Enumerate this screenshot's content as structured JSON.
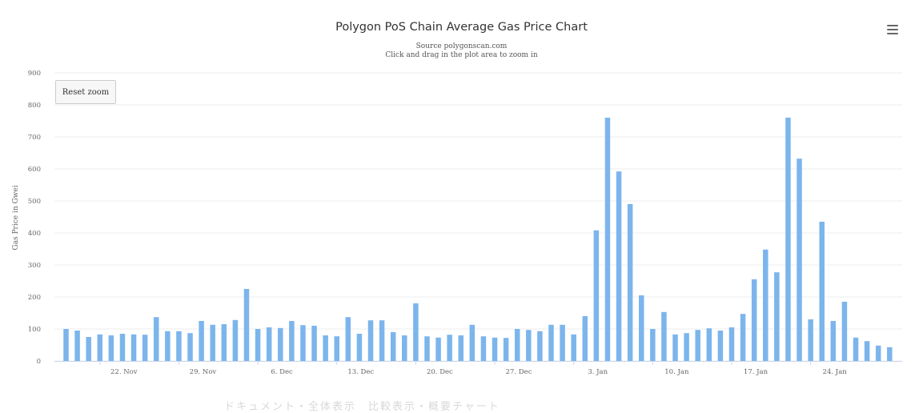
{
  "menu": {
    "icon": "hamburger-menu-icon"
  },
  "reset_zoom_label": "Reset zoom",
  "colors": {
    "bar": "#7cb5ec",
    "grid": "#eeeeee",
    "axis_text": "#666666"
  },
  "chart_data": {
    "type": "bar",
    "title": "Polygon PoS Chain Average Gas Price Chart",
    "subtitle": [
      "Source  polygonscan.com",
      "Click and drag in the plot area to zoom in"
    ],
    "xlabel": "",
    "ylabel": "Gas Price in Gwei",
    "ylim": [
      0,
      900
    ],
    "yticks": [
      0,
      100,
      200,
      300,
      400,
      500,
      600,
      700,
      800,
      900
    ],
    "grid": true,
    "legend": "none",
    "x_ticks": [
      "22. Nov",
      "29. Nov",
      "6. Dec",
      "13. Dec",
      "20. Dec",
      "27. Dec",
      "3. Jan",
      "10. Jan",
      "17. Jan",
      "24. Jan"
    ],
    "values": [
      100,
      95,
      75,
      83,
      80,
      85,
      83,
      82,
      137,
      93,
      93,
      87,
      125,
      113,
      115,
      128,
      225,
      100,
      105,
      103,
      125,
      112,
      110,
      80,
      77,
      137,
      85,
      127,
      127,
      90,
      80,
      180,
      77,
      73,
      82,
      80,
      113,
      77,
      73,
      72,
      100,
      97,
      93,
      113,
      113,
      83,
      140,
      408,
      760,
      592,
      490,
      205,
      100,
      153,
      83,
      87,
      97,
      102,
      95,
      105,
      147,
      255,
      348,
      277,
      760,
      632,
      130,
      435,
      125,
      185,
      73,
      62,
      48,
      43
    ]
  },
  "footer_caption": "ドキュメント・全体表示　比較表示・概要チャート"
}
